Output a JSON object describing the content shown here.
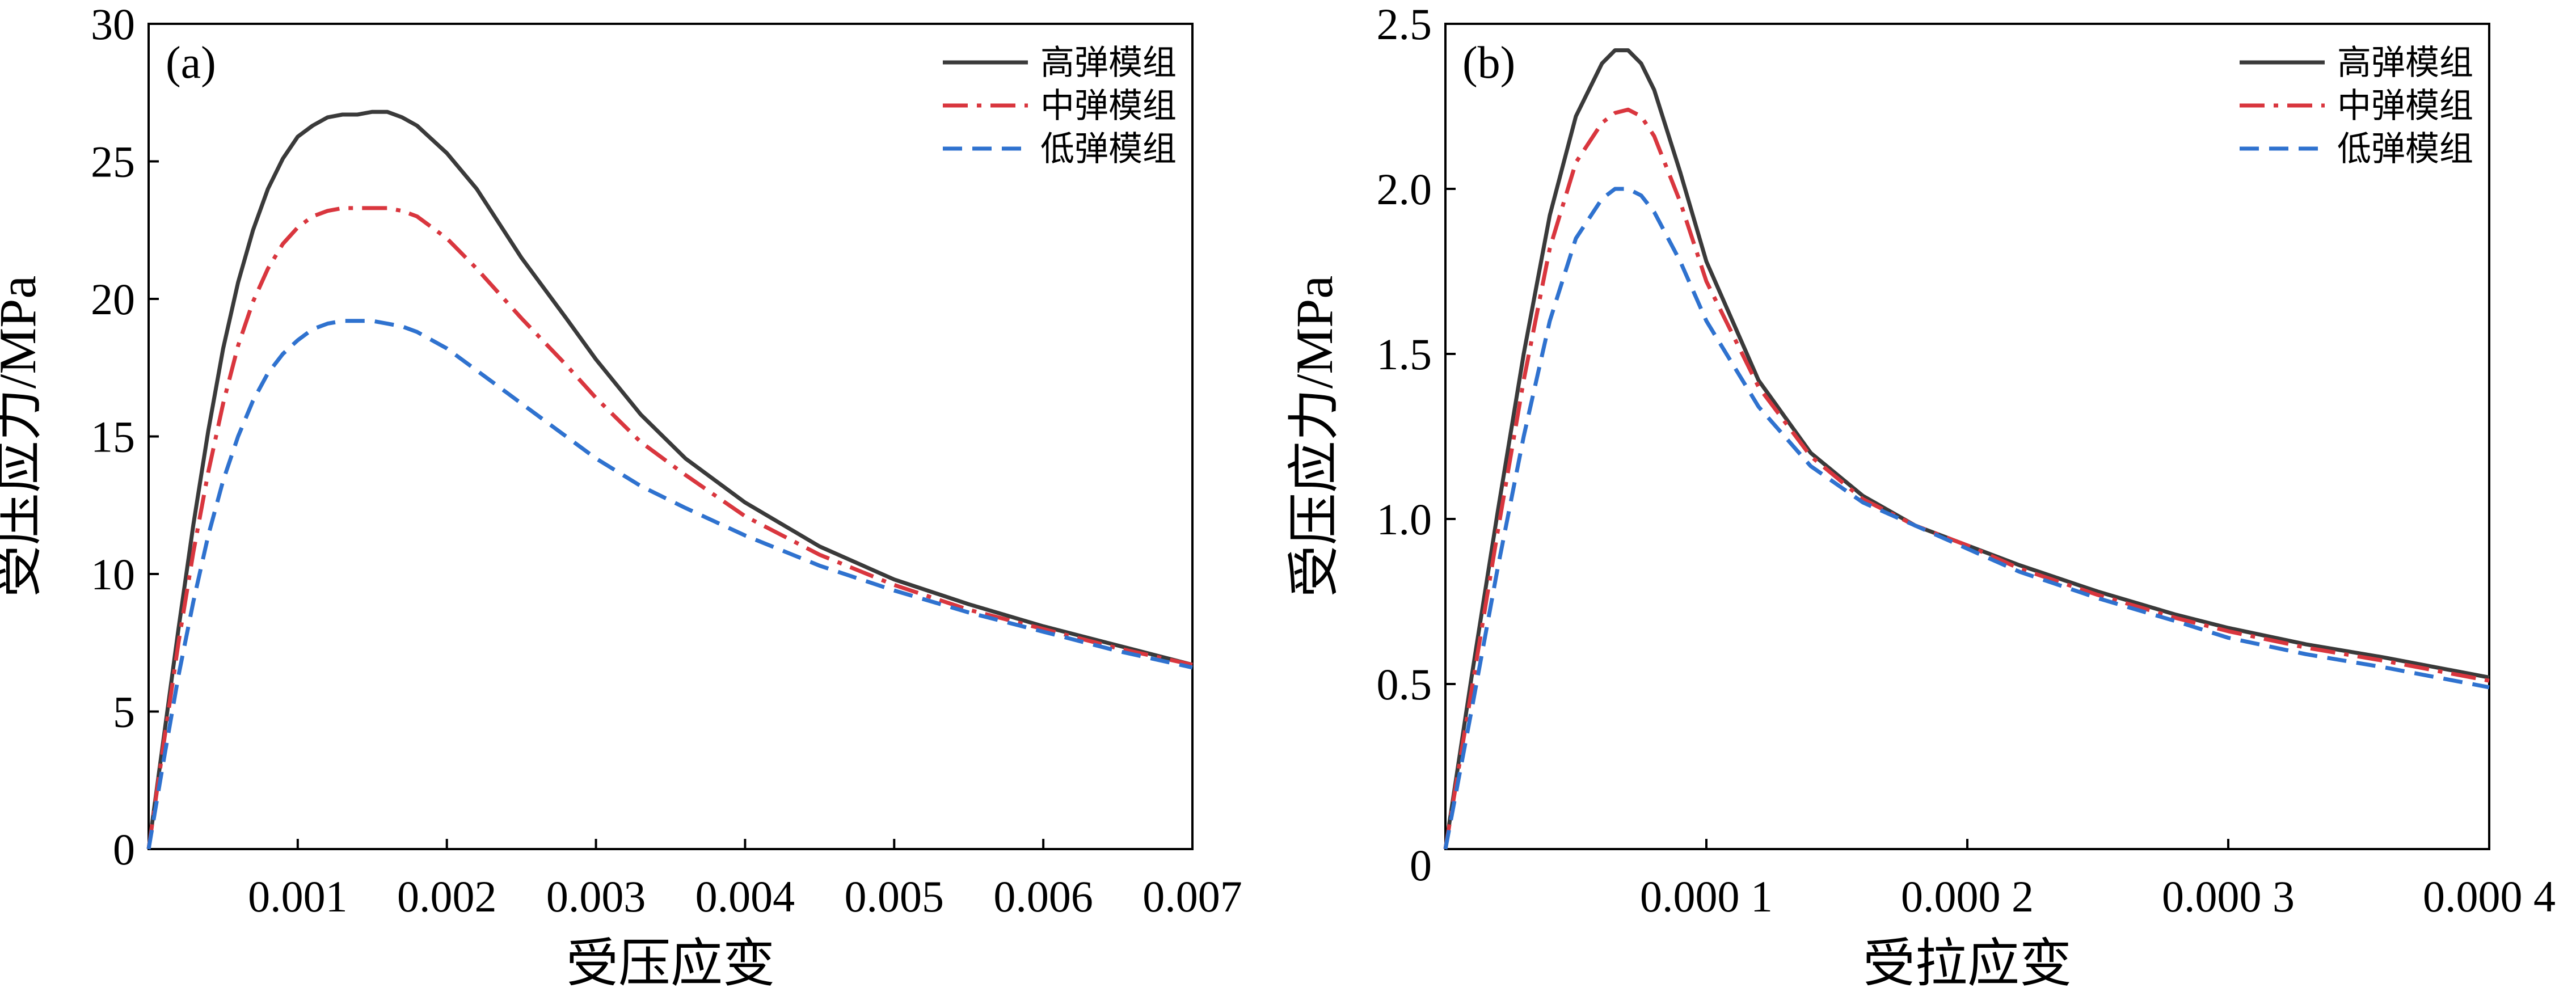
{
  "colors": {
    "high": "#3a3a3a",
    "mid": "#d9363e",
    "low": "#2f72cf",
    "axis": "#000000"
  },
  "chart_data": [
    {
      "type": "line",
      "panel_label": "(a)",
      "xlabel": "受压应变",
      "ylabel": "受压应力/MPa",
      "xlim": [
        0,
        0.007
      ],
      "ylim": [
        0,
        30
      ],
      "x_ticks": [
        0.001,
        0.002,
        0.003,
        0.004,
        0.005,
        0.006,
        0.007
      ],
      "x_tick_labels": [
        "0.001",
        "0.002",
        "0.003",
        "0.004",
        "0.005",
        "0.006",
        "0.007"
      ],
      "y_ticks": [
        0,
        5,
        10,
        15,
        20,
        25,
        30
      ],
      "y_tick_labels": [
        "0",
        "5",
        "10",
        "15",
        "20",
        "25",
        "30"
      ],
      "grid": false,
      "legend_position": "top-right",
      "series": [
        {
          "name": "高弹模组",
          "style": "solid",
          "color_key": "high",
          "x": [
            0,
            0.0001,
            0.0002,
            0.0003,
            0.0004,
            0.0005,
            0.0006,
            0.0007,
            0.0008,
            0.0009,
            0.001,
            0.0011,
            0.0012,
            0.0013,
            0.0014,
            0.0015,
            0.0016,
            0.0017,
            0.0018,
            0.002,
            0.0022,
            0.0025,
            0.0028,
            0.003,
            0.0033,
            0.0036,
            0.004,
            0.0045,
            0.005,
            0.0055,
            0.006,
            0.0065,
            0.007
          ],
          "y": [
            0,
            4.0,
            8.0,
            11.8,
            15.2,
            18.2,
            20.6,
            22.5,
            24.0,
            25.1,
            25.9,
            26.3,
            26.6,
            26.7,
            26.7,
            26.8,
            26.8,
            26.6,
            26.3,
            25.3,
            24.0,
            21.5,
            19.3,
            17.8,
            15.8,
            14.2,
            12.6,
            11.0,
            9.8,
            8.9,
            8.1,
            7.4,
            6.7
          ]
        },
        {
          "name": "中弹模组",
          "style": "dashdot",
          "color_key": "mid",
          "x": [
            0,
            0.0001,
            0.0002,
            0.0003,
            0.0004,
            0.0005,
            0.0006,
            0.0007,
            0.0008,
            0.0009,
            0.001,
            0.0011,
            0.0012,
            0.0013,
            0.0014,
            0.0015,
            0.0016,
            0.0017,
            0.0018,
            0.002,
            0.0022,
            0.0025,
            0.0028,
            0.003,
            0.0033,
            0.0036,
            0.004,
            0.0045,
            0.005,
            0.0055,
            0.006,
            0.0065,
            0.007
          ],
          "y": [
            0,
            3.8,
            7.5,
            10.8,
            13.7,
            16.2,
            18.3,
            19.9,
            21.1,
            22.0,
            22.6,
            23.0,
            23.2,
            23.3,
            23.3,
            23.3,
            23.3,
            23.2,
            23.0,
            22.2,
            21.1,
            19.3,
            17.6,
            16.4,
            14.8,
            13.6,
            12.1,
            10.7,
            9.6,
            8.7,
            8.0,
            7.3,
            6.7
          ]
        },
        {
          "name": "低弹模组",
          "style": "dashed",
          "color_key": "low",
          "x": [
            0,
            0.0001,
            0.0002,
            0.0003,
            0.0004,
            0.0005,
            0.0006,
            0.0007,
            0.0008,
            0.0009,
            0.001,
            0.0011,
            0.0012,
            0.0013,
            0.0014,
            0.0015,
            0.0016,
            0.0017,
            0.0018,
            0.002,
            0.0022,
            0.0025,
            0.0028,
            0.003,
            0.0033,
            0.0036,
            0.004,
            0.0045,
            0.005,
            0.0055,
            0.006,
            0.0065,
            0.007
          ],
          "y": [
            0,
            3.2,
            6.3,
            9.0,
            11.4,
            13.4,
            15.0,
            16.3,
            17.3,
            18.0,
            18.5,
            18.9,
            19.1,
            19.2,
            19.2,
            19.2,
            19.1,
            19.0,
            18.8,
            18.2,
            17.4,
            16.2,
            15.0,
            14.2,
            13.2,
            12.4,
            11.4,
            10.3,
            9.4,
            8.6,
            7.9,
            7.2,
            6.6
          ]
        }
      ]
    },
    {
      "type": "line",
      "panel_label": "(b)",
      "xlabel": "受拉应变",
      "ylabel": "受压应力/MPa",
      "xlim": [
        0,
        0.0004
      ],
      "ylim": [
        0,
        2.5
      ],
      "x_ticks": [
        0.0001,
        0.0002,
        0.0003,
        0.0004
      ],
      "x_tick_labels": [
        "0.000 1",
        "0.000 2",
        "0.000 3",
        "0.000 4"
      ],
      "y_ticks": [
        0.5,
        1.0,
        1.5,
        2.0,
        2.5
      ],
      "y_tick_labels": [
        "0.5",
        "1.0",
        "1.5",
        "2.0",
        "2.5"
      ],
      "origin_label": "0",
      "grid": false,
      "legend_position": "top-right",
      "series": [
        {
          "name": "高弹模组",
          "style": "solid",
          "color_key": "high",
          "x": [
            0,
            1e-05,
            2e-05,
            3e-05,
            4e-05,
            5e-05,
            6e-05,
            6.5e-05,
            7e-05,
            7.5e-05,
            8e-05,
            9e-05,
            0.0001,
            0.00012,
            0.00014,
            0.00016,
            0.00018,
            0.0002,
            0.00022,
            0.00025,
            0.00028,
            0.0003,
            0.00033,
            0.00036,
            0.0004
          ],
          "y": [
            0,
            0.52,
            1.02,
            1.5,
            1.92,
            2.22,
            2.38,
            2.42,
            2.42,
            2.38,
            2.3,
            2.05,
            1.78,
            1.42,
            1.2,
            1.07,
            0.98,
            0.92,
            0.86,
            0.78,
            0.71,
            0.67,
            0.62,
            0.58,
            0.52
          ]
        },
        {
          "name": "中弹模组",
          "style": "dashdot",
          "color_key": "mid",
          "x": [
            0,
            1e-05,
            2e-05,
            3e-05,
            4e-05,
            5e-05,
            6e-05,
            6.5e-05,
            7e-05,
            7.5e-05,
            8e-05,
            9e-05,
            0.0001,
            0.00012,
            0.00014,
            0.00016,
            0.00018,
            0.0002,
            0.00022,
            0.00025,
            0.00028,
            0.0003,
            0.00033,
            0.00036,
            0.0004
          ],
          "y": [
            0,
            0.48,
            0.96,
            1.42,
            1.82,
            2.08,
            2.2,
            2.23,
            2.24,
            2.22,
            2.16,
            1.96,
            1.72,
            1.4,
            1.19,
            1.06,
            0.98,
            0.92,
            0.85,
            0.77,
            0.7,
            0.66,
            0.61,
            0.57,
            0.51
          ]
        },
        {
          "name": "低弹模组",
          "style": "dashed",
          "color_key": "low",
          "x": [
            0,
            1e-05,
            2e-05,
            3e-05,
            4e-05,
            5e-05,
            6e-05,
            6.5e-05,
            7e-05,
            7.5e-05,
            8e-05,
            9e-05,
            0.0001,
            0.00012,
            0.00014,
            0.00016,
            0.00018,
            0.0002,
            0.00022,
            0.00025,
            0.00028,
            0.0003,
            0.00033,
            0.00036,
            0.0004
          ],
          "y": [
            0,
            0.42,
            0.85,
            1.25,
            1.6,
            1.85,
            1.97,
            2.0,
            2.0,
            1.98,
            1.93,
            1.78,
            1.6,
            1.34,
            1.16,
            1.05,
            0.98,
            0.91,
            0.84,
            0.76,
            0.69,
            0.64,
            0.59,
            0.55,
            0.49
          ]
        }
      ]
    }
  ]
}
